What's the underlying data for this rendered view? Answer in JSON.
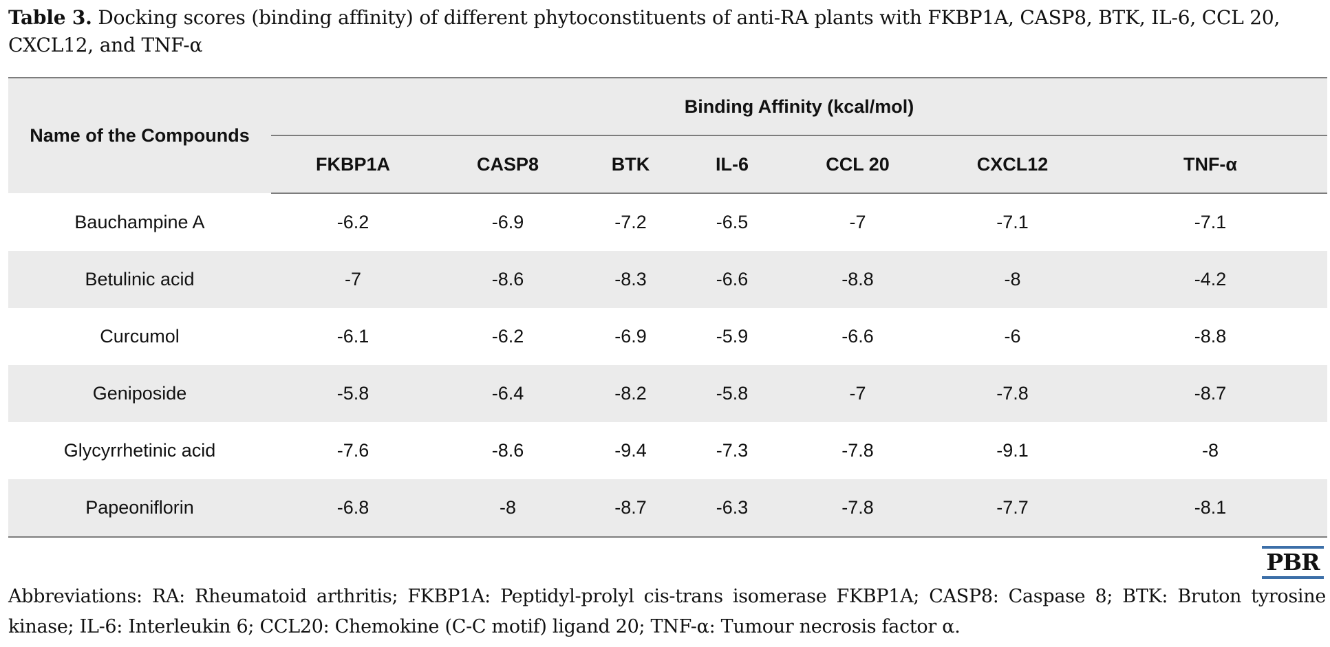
{
  "caption": {
    "label": "Table 3.",
    "text": "Docking scores (binding affinity) of different phytoconstituents of anti-RA plants with FKBP1A, CASP8, BTK, IL-6, CCL 20, CXCL12, and TNF-α"
  },
  "table": {
    "compound_header": "Name of the Compounds",
    "group_header": "Binding Affinity (kcal/mol)",
    "columns": [
      "FKBP1A",
      "CASP8",
      "BTK",
      "IL-6",
      "CCL 20",
      "CXCL12",
      "TNF-α"
    ],
    "rows": [
      {
        "name": "Bauchampine A",
        "values": [
          "-6.2",
          "-6.9",
          "-7.2",
          "-6.5",
          "-7",
          "-7.1",
          "-7.1"
        ]
      },
      {
        "name": "Betulinic acid",
        "values": [
          "-7",
          "-8.6",
          "-8.3",
          "-6.6",
          "-8.8",
          "-8",
          "-4.2"
        ]
      },
      {
        "name": "Curcumol",
        "values": [
          "-6.1",
          "-6.2",
          "-6.9",
          "-5.9",
          "-6.6",
          "-6",
          "-8.8"
        ]
      },
      {
        "name": "Geniposide",
        "values": [
          "-5.8",
          "-6.4",
          "-8.2",
          "-5.8",
          "-7",
          "-7.8",
          "-8.7"
        ]
      },
      {
        "name": "Glycyrrhetinic acid",
        "values": [
          "-7.6",
          "-8.6",
          "-9.4",
          "-7.3",
          "-7.8",
          "-9.1",
          "-8"
        ]
      },
      {
        "name": "Papeoniflorin",
        "values": [
          "-6.8",
          "-8",
          "-8.7",
          "-6.3",
          "-7.8",
          "-7.7",
          "-8.1"
        ]
      }
    ]
  },
  "logo": {
    "text": "PBR"
  },
  "abbreviations": "Abbreviations: RA: Rheumatoid arthritis; FKBP1A: Peptidyl-prolyl cis-trans isomerase FKBP1A; CASP8: Caspase 8; BTK: Bruton tyrosine kinase; IL-6: Interleukin 6; CCL20: Chemokine (C-C motif) ligand 20; TNF-α: Tumour necrosis factor α.",
  "colors": {
    "stripe": "#ebebeb",
    "rule": "#7d7d7d",
    "logo_bar": "#3c6fa8"
  }
}
